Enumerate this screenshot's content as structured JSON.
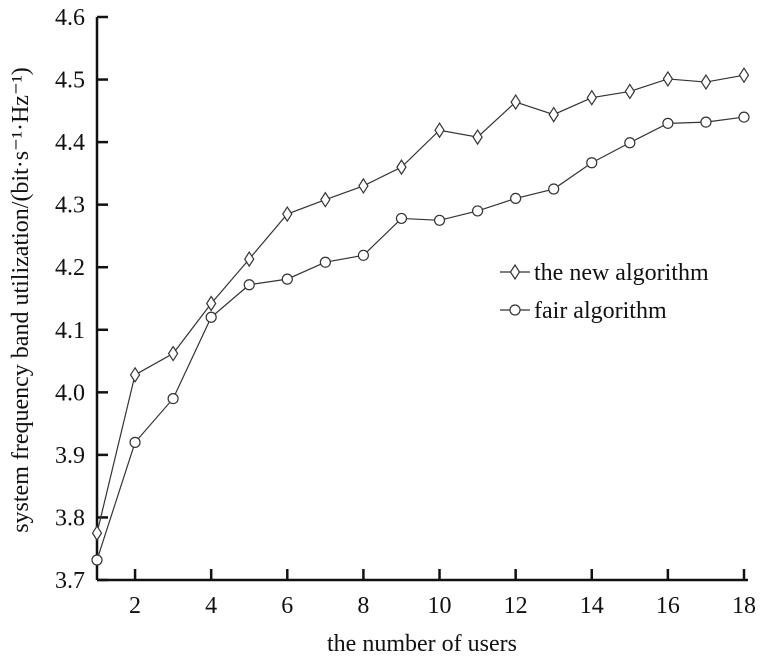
{
  "chart_data": {
    "type": "line",
    "title": "",
    "xlabel": "the number of users",
    "ylabel": "system frequency band utilization/(bit·s⁻¹·Hz⁻¹)",
    "xlim": [
      1,
      18
    ],
    "ylim": [
      3.7,
      4.6
    ],
    "x_ticks": [
      "2",
      "4",
      "6",
      "8",
      "10",
      "12",
      "14",
      "16",
      "18"
    ],
    "y_ticks": [
      "3.7",
      "3.8",
      "3.9",
      "4.0",
      "4.1",
      "4.2",
      "4.3",
      "4.4",
      "4.5",
      "4.6"
    ],
    "grid": false,
    "legend_position": "right",
    "x": [
      1,
      2,
      3,
      4,
      5,
      6,
      7,
      8,
      9,
      10,
      11,
      12,
      13,
      14,
      15,
      16,
      17,
      18
    ],
    "series": [
      {
        "name": "the new algorithm",
        "marker": "diamond",
        "values": [
          3.775,
          4.028,
          4.062,
          4.142,
          4.213,
          4.285,
          4.308,
          4.33,
          4.36,
          4.419,
          4.408,
          4.464,
          4.444,
          4.471,
          4.481,
          4.501,
          4.496,
          4.507
        ]
      },
      {
        "name": "fair algorithm",
        "marker": "circle",
        "values": [
          3.732,
          3.92,
          3.99,
          4.12,
          4.172,
          4.181,
          4.208,
          4.219,
          4.278,
          4.275,
          4.29,
          4.31,
          4.325,
          4.367,
          4.399,
          4.43,
          4.432,
          4.44
        ]
      }
    ]
  }
}
